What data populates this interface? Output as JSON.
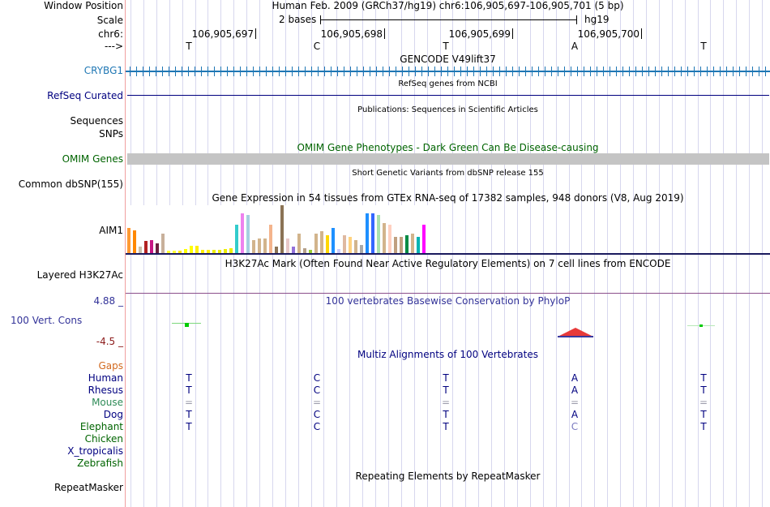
{
  "header": {
    "window_position_label": "Window Position",
    "scale_label": "Scale",
    "chr_label": "chr6:",
    "strand_label": "--->",
    "assembly_title": "Human Feb. 2009 (GRCh37/hg19)   chr6:106,905,697-106,905,701 (5 bp)",
    "scale_text": "2 bases",
    "assembly": "hg19",
    "positions": [
      "106,905,697",
      "106,905,698",
      "106,905,699",
      "106,905,700"
    ],
    "bases": [
      "T",
      "C",
      "T",
      "A",
      "T"
    ]
  },
  "tracks": {
    "gencode": {
      "title": "GENCODE V49lift37",
      "label": "CRYBG1",
      "color": "#1f77b4"
    },
    "refseq": {
      "title": "RefSeq genes from NCBI",
      "label": "RefSeq Curated"
    },
    "publications": {
      "title": "Publications: Sequences in Scientific Articles",
      "label1": "Sequences",
      "label2": "SNPs"
    },
    "omim": {
      "title": "OMIM Gene Phenotypes - Dark Green Can Be Disease-causing",
      "label": "OMIM Genes"
    },
    "dbsnp": {
      "title": "Short Genetic Variants from dbSNP release 155",
      "label": "Common dbSNP(155)"
    },
    "gtex": {
      "title": "Gene Expression in 54 tissues from GTEx RNA-seq of 17382 samples, 948 donors (V8, Aug 2019)",
      "label": "AIM1"
    },
    "h3k27ac": {
      "title": "H3K27Ac Mark (Often Found Near Active Regulatory Elements) on 7 cell lines from ENCODE",
      "label": "Layered H3K27Ac"
    },
    "phylop": {
      "title": "100 vertebrates Basewise Conservation by PhyloP",
      "label": "100 Vert. Cons",
      "max": "4.88 _",
      "min": "-4.5 _"
    },
    "multiz": {
      "title": "Multiz Alignments of 100 Vertebrates",
      "gaps_label": "Gaps",
      "species": [
        {
          "name": "Human",
          "bases": [
            "T",
            "C",
            "T",
            "A",
            "T"
          ]
        },
        {
          "name": "Rhesus",
          "bases": [
            "T",
            "C",
            "T",
            "A",
            "T"
          ]
        },
        {
          "name": "Mouse",
          "bases": [
            "=",
            "=",
            "=",
            "=",
            "="
          ]
        },
        {
          "name": "Dog",
          "bases": [
            "T",
            "C",
            "T",
            "A",
            "T"
          ]
        },
        {
          "name": "Elephant",
          "bases": [
            "T",
            "C",
            "T",
            "C",
            "T"
          ]
        },
        {
          "name": "Chicken",
          "bases": []
        },
        {
          "name": "X_tropicalis",
          "bases": []
        },
        {
          "name": "Zebrafish",
          "bases": []
        }
      ]
    },
    "repeatmasker": {
      "title": "Repeating Elements by RepeatMasker",
      "label": "RepeatMasker"
    }
  },
  "chart_data": {
    "type": "bar",
    "title": "Gene Expression in 54 tissues from GTEx RNA-seq of 17382 samples, 948 donors (V8, Aug 2019)",
    "xlabel": "",
    "ylabel": "",
    "ylim": [
      0,
      60
    ],
    "values": [
      32,
      28,
      8,
      15,
      16,
      12,
      24,
      3,
      3,
      3,
      5,
      9,
      9,
      4,
      4,
      4,
      4,
      5,
      6,
      36,
      50,
      48,
      16,
      18,
      18,
      36,
      8,
      60,
      18,
      8,
      24,
      6,
      4,
      24,
      27,
      22,
      32,
      5,
      22,
      20,
      16,
      10,
      50,
      50,
      48,
      38,
      36,
      20,
      20,
      22,
      24,
      20,
      36,
      8
    ],
    "colors": [
      "#ff9933",
      "#ff8800",
      "#ccc0a8",
      "#b22222",
      "#c71585",
      "#6b1f3f",
      "#c8b09b",
      "#ffff33",
      "#ffff33",
      "#ffe800",
      "#ffff00",
      "#ffff00",
      "#ffee00",
      "#ffee00",
      "#ffee00",
      "#eeee00",
      "#eeee00",
      "#eeee00",
      "#eeee00",
      "#33cccc",
      "#ee82ee",
      "#a6cfe0",
      "#d2b48c",
      "#d2b48c",
      "#d2b48c",
      "#f4b48c",
      "#8b7355",
      "#8b7355",
      "#e8c8c8",
      "#9370db",
      "#d2b48c",
      "#b5a088",
      "#9acd32",
      "#d2b48c",
      "#d2b48c",
      "#ffd700",
      "#1e90ff",
      "#ccccff",
      "#dfb9a0",
      "#ffd27f",
      "#d2b48c",
      "#aaaaaa",
      "#1e90ff",
      "#3366ff",
      "#a9e1b0",
      "#d2b48c",
      "#ffd0c0",
      "#c0a080",
      "#c0a080",
      "#008b45",
      "#d2b48c",
      "#00b3b3",
      "#ff00ff",
      "#ffffff"
    ]
  }
}
